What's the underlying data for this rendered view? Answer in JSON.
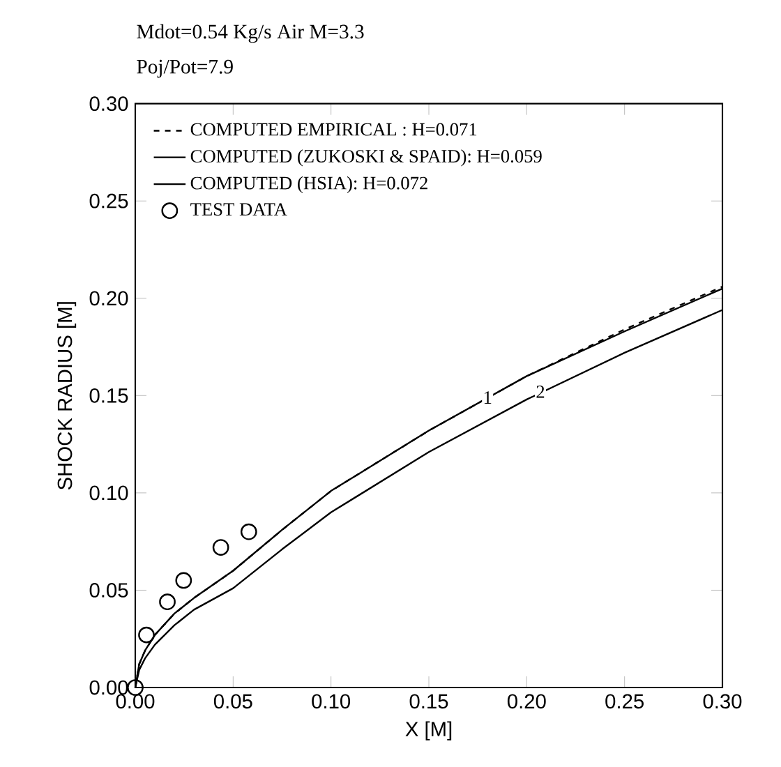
{
  "chart_data": {
    "type": "line",
    "title": "Mdot=0.54 Kg/s  Air  M=3.3",
    "subtitle": "Poj/Pot=7.9",
    "xlabel": "X [M]",
    "ylabel": "SHOCK RADIUS [M]",
    "xlim": [
      0,
      0.3
    ],
    "ylim": [
      0,
      0.3
    ],
    "xticks": [
      {
        "value": 0,
        "label": "0.00"
      },
      {
        "value": 0.05,
        "label": "0.05"
      },
      {
        "value": 0.1,
        "label": "0.10"
      },
      {
        "value": 0.15,
        "label": "0.15"
      },
      {
        "value": 0.2,
        "label": "0.20"
      },
      {
        "value": 0.25,
        "label": "0.25"
      },
      {
        "value": 0.3,
        "label": "0.30"
      }
    ],
    "yticks": [
      {
        "value": 0,
        "label": "0.00"
      },
      {
        "value": 0.05,
        "label": "0.05"
      },
      {
        "value": 0.1,
        "label": "0.10"
      },
      {
        "value": 0.15,
        "label": "0.15"
      },
      {
        "value": 0.2,
        "label": "0.20"
      },
      {
        "value": 0.25,
        "label": "0.25"
      },
      {
        "value": 0.3,
        "label": "0.30"
      }
    ],
    "legend": "top left",
    "series": [
      {
        "name": "COMPUTED EMPIRICAL : H=0.071",
        "color": "#000000",
        "line_style": "dashed",
        "marker": "none",
        "x": [
          0,
          0.002,
          0.005,
          0.01,
          0.02,
          0.03,
          0.05,
          0.075,
          0.1,
          0.15,
          0.2,
          0.25,
          0.3
        ],
        "values": [
          0,
          0.012,
          0.019,
          0.027,
          0.038,
          0.046,
          0.06,
          0.081,
          0.101,
          0.132,
          0.16,
          0.184,
          0.206
        ]
      },
      {
        "name": "COMPUTED (ZUKOSKI & SPAID): H=0.059",
        "color": "#000000",
        "line_style": "solid",
        "marker": "none",
        "x": [
          0,
          0.002,
          0.005,
          0.01,
          0.02,
          0.03,
          0.05,
          0.075,
          0.1,
          0.15,
          0.2,
          0.25,
          0.3
        ],
        "values": [
          0,
          0.009,
          0.015,
          0.022,
          0.032,
          0.04,
          0.051,
          0.071,
          0.09,
          0.121,
          0.148,
          0.172,
          0.194
        ]
      },
      {
        "name": "COMPUTED (HSIA): H=0.072",
        "color": "#000000",
        "line_style": "solid",
        "marker": "none",
        "x": [
          0,
          0.002,
          0.005,
          0.01,
          0.02,
          0.03,
          0.05,
          0.075,
          0.1,
          0.15,
          0.2,
          0.25,
          0.3
        ],
        "values": [
          0,
          0.012,
          0.019,
          0.027,
          0.038,
          0.046,
          0.06,
          0.081,
          0.101,
          0.132,
          0.16,
          0.183,
          0.205
        ]
      },
      {
        "name": "TEST DATA",
        "type": "scatter",
        "color": "#000000",
        "marker": "circle",
        "x": [
          0,
          0.0057,
          0.0164,
          0.0247,
          0.0437,
          0.058
        ],
        "values": [
          0,
          0.027,
          0.044,
          0.055,
          0.072,
          0.08
        ]
      }
    ],
    "annotations": [
      {
        "text": "1",
        "x": 0.18,
        "y": 0.149
      },
      {
        "text": "2",
        "x": 0.207,
        "y": 0.152
      }
    ]
  }
}
